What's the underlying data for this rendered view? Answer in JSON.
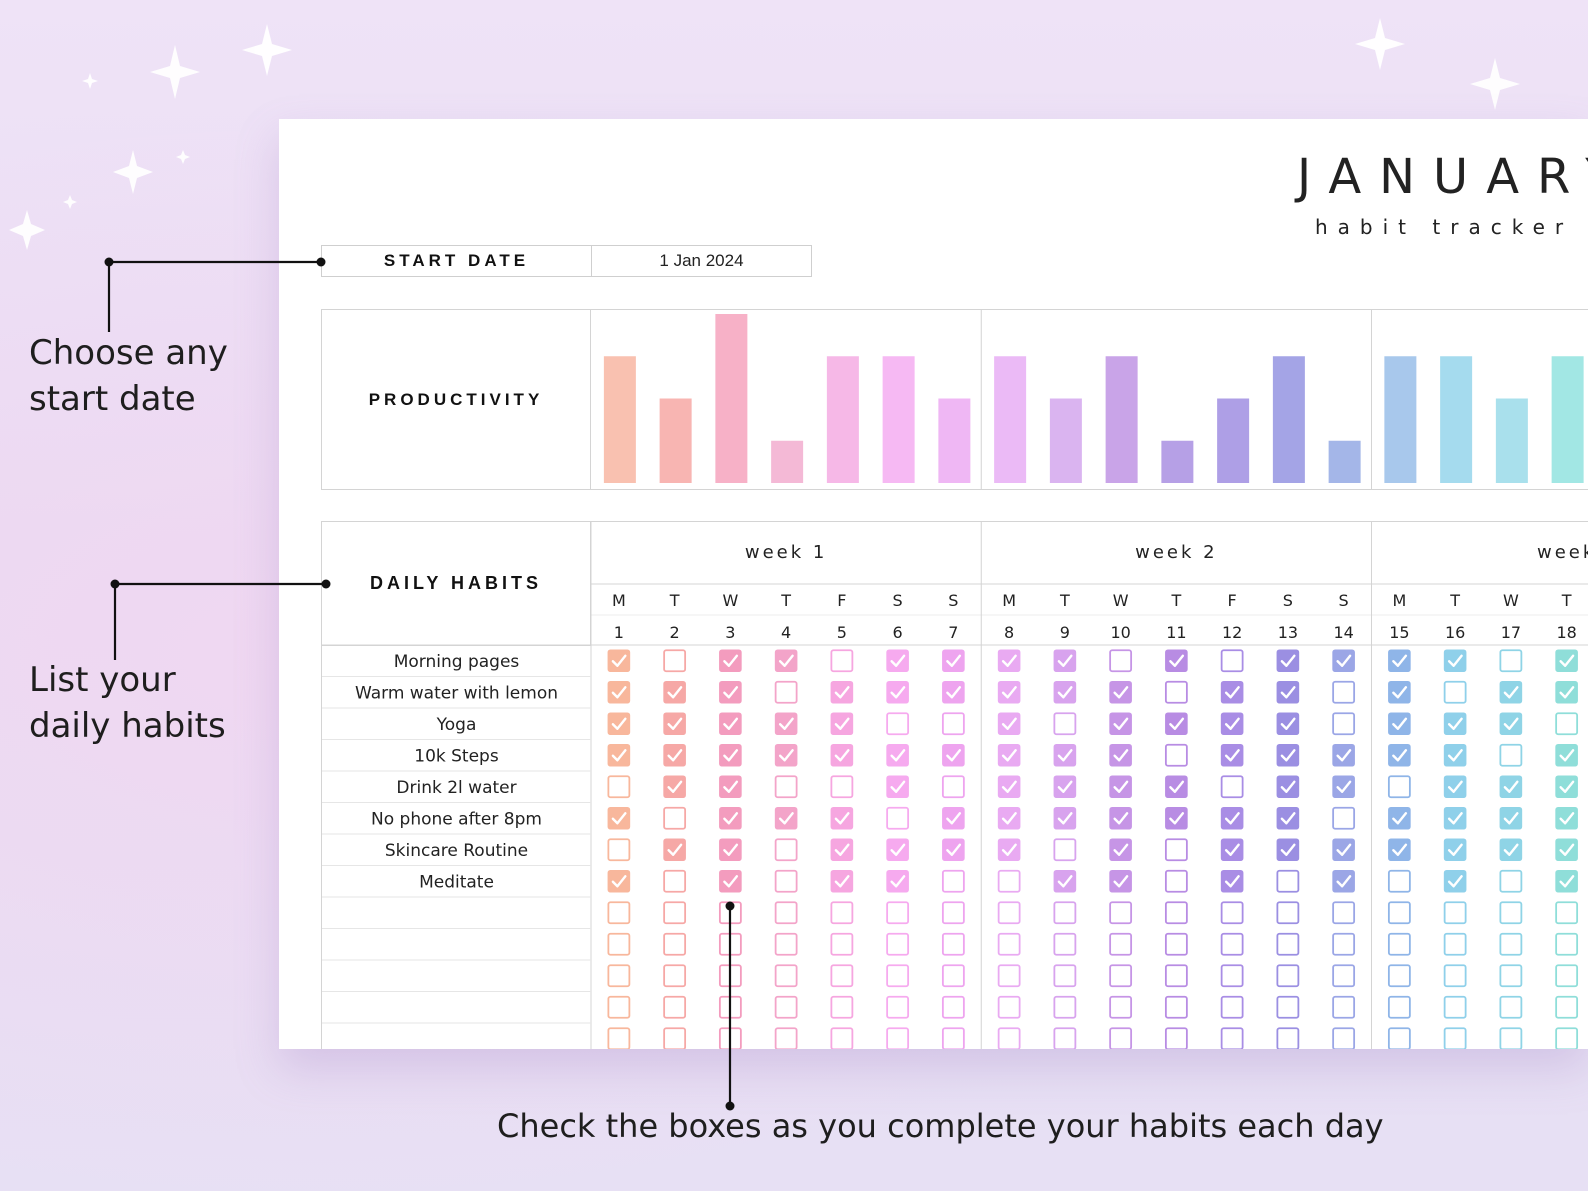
{
  "page": {
    "title": "JANUARY",
    "subtitle": "habit tracker",
    "start_date_label": "START DATE",
    "start_date_value": "1 Jan 2024",
    "productivity_label": "PRODUCTIVITY",
    "daily_habits_label": "DAILY HABITS"
  },
  "annotations": {
    "start_date": [
      "Choose any",
      "start date"
    ],
    "habits": [
      "List your",
      "daily habits"
    ],
    "checkboxes": "Check the boxes as you complete your habits each day"
  },
  "weeks": [
    "week 1",
    "week 2",
    "week"
  ],
  "days": [
    {
      "dow": "M",
      "date": "1"
    },
    {
      "dow": "T",
      "date": "2"
    },
    {
      "dow": "W",
      "date": "3"
    },
    {
      "dow": "T",
      "date": "4"
    },
    {
      "dow": "F",
      "date": "5"
    },
    {
      "dow": "S",
      "date": "6"
    },
    {
      "dow": "S",
      "date": "7"
    },
    {
      "dow": "M",
      "date": "8"
    },
    {
      "dow": "T",
      "date": "9"
    },
    {
      "dow": "W",
      "date": "10"
    },
    {
      "dow": "T",
      "date": "11"
    },
    {
      "dow": "F",
      "date": "12"
    },
    {
      "dow": "S",
      "date": "13"
    },
    {
      "dow": "S",
      "date": "14"
    },
    {
      "dow": "M",
      "date": "15"
    },
    {
      "dow": "T",
      "date": "16"
    },
    {
      "dow": "W",
      "date": "17"
    },
    {
      "dow": "T",
      "date": "18"
    }
  ],
  "day_colors": [
    "#f8b79c",
    "#f6a8a6",
    "#f39cbe",
    "#f3a4c9",
    "#f6a6e0",
    "#f6aaef",
    "#eea4ef",
    "#e9aaf2",
    "#d8a3ee",
    "#c695e6",
    "#b88ce3",
    "#a98de5",
    "#9b8fe2",
    "#9ba6e6",
    "#8fb5e8",
    "#8fd0ea",
    "#8fd4e6",
    "#8fded9"
  ],
  "productivity": {
    "levels": [
      3,
      2,
      4,
      1,
      3,
      3,
      2,
      3,
      2,
      3,
      1,
      2,
      3,
      1,
      3,
      3,
      2,
      3
    ],
    "max_level": 4,
    "bar_colors": [
      "#f9c1b0",
      "#f8b5b2",
      "#f7b1c7",
      "#f4b9d6",
      "#f6b8e7",
      "#f6b9f3",
      "#efb7f4",
      "#ebbaf6",
      "#dab4f0",
      "#c9a4e8",
      "#b6a0e6",
      "#ae9fe6",
      "#a4a4e6",
      "#a4b6e8",
      "#a8c8ec",
      "#a5dbee",
      "#a9e0ec",
      "#a2e7e4"
    ]
  },
  "habits": [
    {
      "name": "Morning pages",
      "checks": [
        1,
        0,
        1,
        1,
        0,
        1,
        1,
        1,
        1,
        0,
        1,
        0,
        1,
        1,
        1,
        1,
        0,
        1
      ]
    },
    {
      "name": "Warm water with lemon",
      "checks": [
        1,
        1,
        1,
        0,
        1,
        1,
        1,
        1,
        1,
        1,
        0,
        1,
        1,
        0,
        1,
        0,
        1,
        1
      ]
    },
    {
      "name": "Yoga",
      "checks": [
        1,
        1,
        1,
        1,
        1,
        0,
        0,
        1,
        0,
        1,
        1,
        1,
        1,
        0,
        1,
        1,
        1,
        0
      ]
    },
    {
      "name": "10k Steps",
      "checks": [
        1,
        1,
        1,
        1,
        1,
        1,
        1,
        1,
        1,
        1,
        0,
        1,
        1,
        1,
        1,
        1,
        0,
        1
      ]
    },
    {
      "name": "Drink 2l water",
      "checks": [
        0,
        1,
        1,
        0,
        0,
        1,
        0,
        1,
        1,
        1,
        1,
        0,
        1,
        1,
        0,
        1,
        1,
        1
      ]
    },
    {
      "name": "No phone after 8pm",
      "checks": [
        1,
        0,
        1,
        1,
        1,
        0,
        1,
        1,
        1,
        1,
        1,
        1,
        1,
        0,
        1,
        1,
        1,
        1
      ]
    },
    {
      "name": "Skincare Routine",
      "checks": [
        0,
        1,
        1,
        0,
        1,
        1,
        1,
        1,
        0,
        1,
        0,
        1,
        1,
        1,
        1,
        1,
        1,
        1
      ]
    },
    {
      "name": "Meditate",
      "checks": [
        1,
        0,
        1,
        0,
        1,
        1,
        0,
        0,
        1,
        1,
        0,
        1,
        0,
        1,
        0,
        1,
        0,
        1
      ]
    },
    {
      "name": "",
      "checks": [
        0,
        0,
        0,
        0,
        0,
        0,
        0,
        0,
        0,
        0,
        0,
        0,
        0,
        0,
        0,
        0,
        0,
        0
      ]
    },
    {
      "name": "",
      "checks": [
        0,
        0,
        0,
        0,
        0,
        0,
        0,
        0,
        0,
        0,
        0,
        0,
        0,
        0,
        0,
        0,
        0,
        0
      ]
    },
    {
      "name": "",
      "checks": [
        0,
        0,
        0,
        0,
        0,
        0,
        0,
        0,
        0,
        0,
        0,
        0,
        0,
        0,
        0,
        0,
        0,
        0
      ]
    },
    {
      "name": "",
      "checks": [
        0,
        0,
        0,
        0,
        0,
        0,
        0,
        0,
        0,
        0,
        0,
        0,
        0,
        0,
        0,
        0,
        0,
        0
      ]
    },
    {
      "name": "",
      "checks": [
        0,
        0,
        0,
        0,
        0,
        0,
        0,
        0,
        0,
        0,
        0,
        0,
        0,
        0,
        0,
        0,
        0,
        0
      ]
    }
  ]
}
